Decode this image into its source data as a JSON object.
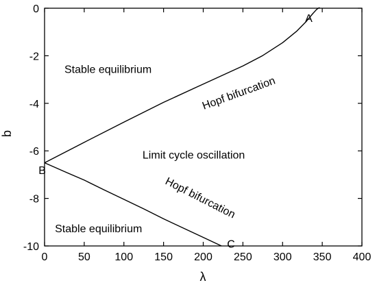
{
  "chart_data": {
    "type": "line",
    "xlabel": "λ",
    "ylabel": "b",
    "xlim": [
      0,
      400
    ],
    "ylim": [
      -10,
      0
    ],
    "x_ticks": [
      0,
      50,
      100,
      150,
      200,
      250,
      300,
      350,
      400
    ],
    "y_ticks": [
      0,
      -2,
      -4,
      -6,
      -8,
      -10
    ],
    "grid": false,
    "series": [
      {
        "name": "Hopf bifurcation",
        "x": [
          0,
          50,
          100,
          150,
          200,
          250,
          275,
          300,
          318,
          330,
          338,
          343,
          346,
          347
        ],
        "y": [
          -6.5,
          -5.64,
          -4.79,
          -3.96,
          -3.19,
          -2.43,
          -1.99,
          -1.45,
          -0.96,
          -0.55,
          -0.23,
          -0.05,
          0.02,
          0.0
        ]
      },
      {
        "name": "Hopf bifurcation",
        "x": [
          0,
          25,
          50,
          75,
          100,
          125,
          150,
          175,
          200,
          223
        ],
        "y": [
          -6.5,
          -6.87,
          -7.23,
          -7.64,
          -8.04,
          -8.44,
          -8.86,
          -9.25,
          -9.64,
          -10.0
        ]
      }
    ],
    "annotations": [
      {
        "text": "Stable equilibrium",
        "x": 80,
        "y": -2.6
      },
      {
        "text": "Limit cycle oscillation",
        "x": 188,
        "y": -6.2
      },
      {
        "text": "Stable equilibrium",
        "x": 68,
        "y": -9.3
      },
      {
        "text": "Hopf bifurcation",
        "x": 245,
        "y": -3.6,
        "angle": -20
      },
      {
        "text": "Hopf bifurcation",
        "x": 196,
        "y": -8.0,
        "angle": 27
      },
      {
        "text": "A",
        "x": 333,
        "y": -0.45
      },
      {
        "text": "B",
        "x": -3,
        "y": -6.85
      },
      {
        "text": "C",
        "x": 235,
        "y": -9.95
      }
    ]
  }
}
